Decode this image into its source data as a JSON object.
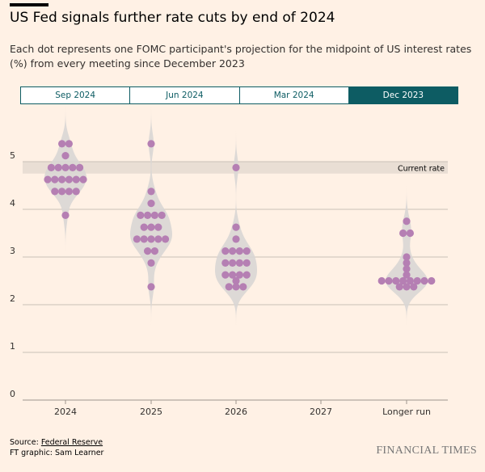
{
  "header": {
    "title": "US Fed signals further rate cuts by end of 2024",
    "subtitle": "Each dot represents one FOMC participant's projection for the midpoint of US interest rates (%) from every meeting since December 2023"
  },
  "tabs": [
    {
      "label": "Sep 2024",
      "active": false
    },
    {
      "label": "Jun 2024",
      "active": false
    },
    {
      "label": "Mar 2024",
      "active": false
    },
    {
      "label": "Dec 2023",
      "active": true
    }
  ],
  "colors": {
    "dot": "#b57fb3",
    "violin": "#d9d6d4",
    "band": "#e9ded4",
    "accent": "#0d5c63",
    "grid": "#c9c1b8"
  },
  "chart_data": {
    "type": "scatter",
    "subtype": "beeswarm-violin",
    "categories": [
      "2024",
      "2025",
      "2026",
      "2027",
      "Longer run"
    ],
    "ylim": [
      0,
      5.5
    ],
    "yticks": [
      0,
      1,
      2,
      3,
      4,
      5
    ],
    "grid": true,
    "current_rate": {
      "label": "Current rate",
      "range": [
        4.75,
        5.0
      ]
    },
    "series": [
      {
        "category": "2024",
        "values": [
          5.375,
          5.375,
          5.125,
          4.875,
          4.875,
          4.875,
          4.875,
          4.875,
          4.625,
          4.625,
          4.625,
          4.625,
          4.625,
          4.625,
          4.375,
          4.375,
          4.375,
          4.375,
          3.875
        ]
      },
      {
        "category": "2025",
        "values": [
          5.375,
          4.375,
          4.125,
          3.875,
          3.875,
          3.875,
          3.875,
          3.625,
          3.625,
          3.625,
          3.375,
          3.375,
          3.375,
          3.375,
          3.375,
          3.125,
          3.125,
          2.875,
          2.375
        ]
      },
      {
        "category": "2026",
        "values": [
          4.875,
          3.625,
          3.375,
          3.125,
          3.125,
          3.125,
          3.125,
          2.875,
          2.875,
          2.875,
          2.875,
          2.625,
          2.625,
          2.625,
          2.625,
          2.5,
          2.375,
          2.375,
          2.375
        ]
      },
      {
        "category": "2027",
        "values": []
      },
      {
        "category": "Longer run",
        "values": [
          3.75,
          3.5,
          3.5,
          3.0,
          2.875,
          2.75,
          2.625,
          2.5,
          2.5,
          2.5,
          2.5,
          2.5,
          2.5,
          2.5,
          2.5,
          2.375,
          2.375,
          2.375
        ]
      }
    ]
  },
  "footer": {
    "source_prefix": "Source: ",
    "source_link": "Federal Reserve",
    "credit": "FT graphic: Sam Learner",
    "logo": "FINANCIAL TIMES"
  }
}
